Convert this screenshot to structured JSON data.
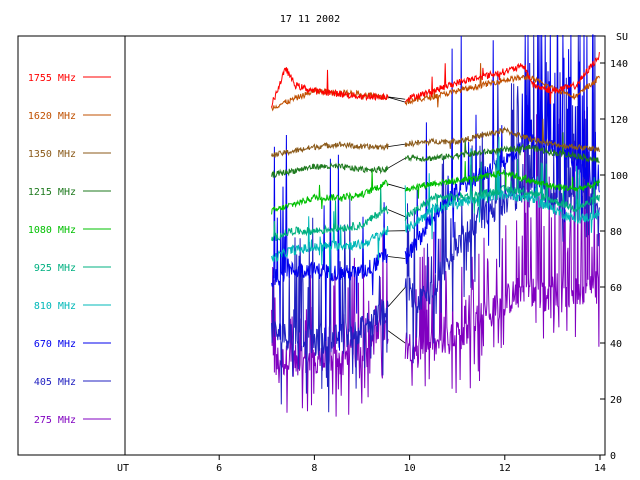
{
  "chart_data": {
    "type": "line",
    "title": "17 11 2002",
    "xlabel": "UT",
    "ylabel": "SU",
    "xlim": [
      3.9,
      15.2
    ],
    "ylim": [
      0,
      150
    ],
    "x_ticks": [
      6,
      8,
      10,
      12,
      14
    ],
    "y_ticks": [
      0,
      20,
      40,
      60,
      80,
      100,
      120,
      140
    ],
    "grid": false,
    "legend_position": "left",
    "data_gap": [
      9.55,
      9.9
    ],
    "series": [
      {
        "name": "1755 MHz",
        "color": "#ff0000",
        "x": [
          7.1,
          7.4,
          7.6,
          8.0,
          8.5,
          9.0,
          9.5,
          9.9,
          10.5,
          11.0,
          11.5,
          12.0,
          12.4,
          12.6,
          13.0,
          13.5,
          14.0
        ],
        "values": [
          125,
          138,
          132,
          130,
          129,
          128,
          128,
          127,
          130,
          133,
          135,
          137,
          139,
          132,
          130,
          132,
          143
        ]
      },
      {
        "name": "1620 MHz",
        "color": "#c05000",
        "x": [
          7.1,
          8.0,
          9.0,
          9.5,
          9.9,
          10.5,
          11.0,
          11.5,
          12.0,
          12.5,
          13.0,
          13.5,
          14.0
        ],
        "values": [
          124,
          130,
          129,
          128,
          126,
          128,
          130,
          132,
          134,
          135,
          131,
          128,
          135
        ]
      },
      {
        "name": "1350 MHz",
        "color": "#8b5a1a",
        "x": [
          7.1,
          8.0,
          8.5,
          9.0,
          9.5,
          9.9,
          10.5,
          11.0,
          11.5,
          12.0,
          12.5,
          13.0,
          13.5,
          14.0
        ],
        "values": [
          107,
          110,
          111,
          110,
          110,
          111,
          112,
          112,
          114,
          116,
          113,
          111,
          110,
          109
        ]
      },
      {
        "name": "1215 MHz",
        "color": "#1e7a1e",
        "x": [
          7.1,
          8.0,
          8.5,
          9.0,
          9.5,
          9.9,
          10.5,
          11.0,
          11.5,
          12.0,
          12.5,
          13.0,
          13.5,
          14.0
        ],
        "values": [
          100,
          103,
          103,
          102,
          102,
          106,
          106,
          107,
          108,
          109,
          110,
          108,
          107,
          105
        ]
      },
      {
        "name": "1080 MHz",
        "color": "#00c000",
        "x": [
          7.1,
          8.0,
          8.5,
          9.0,
          9.5,
          9.9,
          10.5,
          11.0,
          11.5,
          12.0,
          12.5,
          13.0,
          13.5,
          14.0
        ],
        "values": [
          87,
          92,
          92,
          93,
          97,
          95,
          97,
          98,
          99,
          101,
          98,
          96,
          95,
          97
        ]
      },
      {
        "name": "925 MHz",
        "color": "#00b080",
        "x": [
          7.1,
          7.5,
          8.0,
          8.5,
          9.0,
          9.5,
          9.9,
          10.2,
          10.5,
          11.0,
          11.5,
          12.0,
          12.5,
          13.0,
          13.5,
          14.0
        ],
        "values": [
          77,
          80,
          80,
          81,
          82,
          88,
          85,
          88,
          92,
          92,
          93,
          95,
          94,
          91,
          88,
          92
        ]
      },
      {
        "name": "810 MHz",
        "color": "#00b8b8",
        "x": [
          7.1,
          7.5,
          8.0,
          8.5,
          9.0,
          9.5,
          9.9,
          10.2,
          10.5,
          11.0,
          11.5,
          12.0,
          12.5,
          13.0,
          13.5,
          14.0
        ],
        "values": [
          70,
          73,
          74,
          75,
          75,
          80,
          80,
          84,
          88,
          90,
          92,
          93,
          92,
          88,
          84,
          86
        ]
      },
      {
        "name": "670 MHz",
        "color": "#0000ee",
        "x": [
          7.1,
          7.5,
          8.0,
          8.5,
          9.0,
          9.5,
          9.9,
          10.2,
          10.5,
          10.8,
          11.0,
          11.5,
          12.0,
          12.5,
          13.0,
          13.5,
          14.0
        ],
        "values": [
          62,
          66,
          66,
          65,
          65,
          71,
          70,
          77,
          86,
          90,
          95,
          100,
          105,
          112,
          110,
          103,
          96
        ]
      },
      {
        "name": "405 MHz",
        "color": "#2020c0",
        "x": [
          7.1,
          7.5,
          8.0,
          8.5,
          9.0,
          9.5,
          9.9,
          10.2,
          10.5,
          11.0,
          11.5,
          12.0,
          12.5,
          13.0,
          13.5,
          14.0
        ],
        "values": [
          44,
          42,
          40,
          42,
          45,
          52,
          60,
          55,
          60,
          75,
          85,
          90,
          95,
          92,
          90,
          88
        ]
      },
      {
        "name": "275 MHz",
        "color": "#8000c0",
        "x": [
          7.1,
          7.5,
          8.0,
          8.5,
          9.0,
          9.5,
          9.9,
          10.5,
          11.0,
          11.5,
          12.0,
          12.5,
          13.0,
          13.5,
          14.0
        ],
        "values": [
          33,
          34,
          32,
          33,
          38,
          45,
          40,
          38,
          42,
          50,
          55,
          60,
          55,
          58,
          60
        ]
      }
    ]
  }
}
